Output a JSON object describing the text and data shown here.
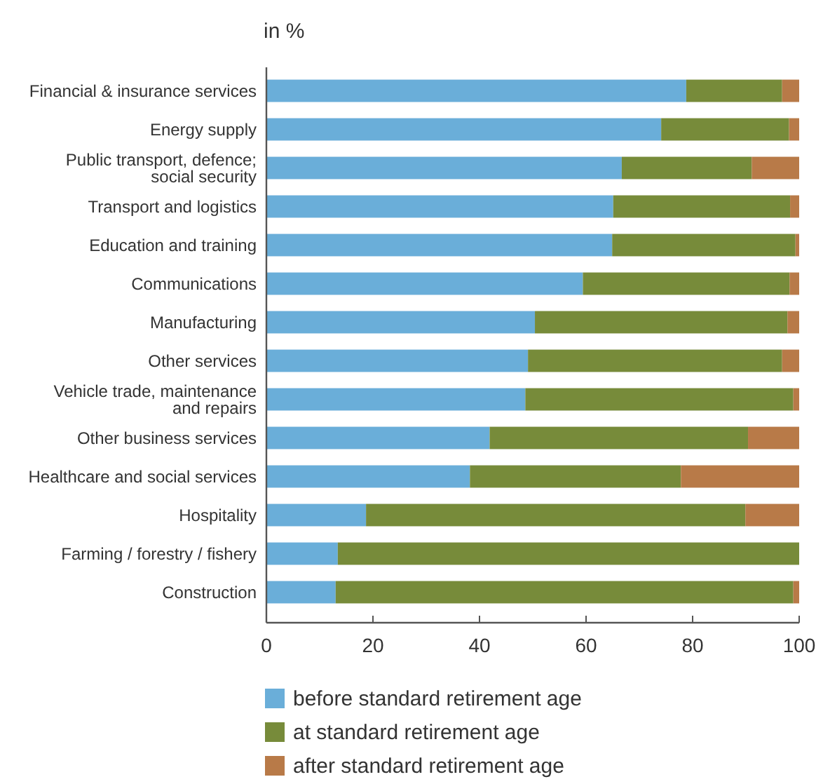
{
  "chart_data": {
    "type": "bar",
    "orientation": "horizontal",
    "stacked": true,
    "title": "in %",
    "categories": [
      "Financial & insurance services",
      "Energy supply",
      "Public transport, defence; social security",
      "Transport and logistics",
      "Education and training",
      "Communications",
      "Manufacturing",
      "Other services",
      "Vehicle trade, maintenance and repairs",
      "Other business services",
      "Healthcare and social services",
      "Hospitality",
      "Farming / forestry / fishery",
      "Construction"
    ],
    "series": [
      {
        "name": "before standard retirement age",
        "color": "#6aaed9",
        "values": [
          78.8,
          74.1,
          66.7,
          65.1,
          64.9,
          59.4,
          50.4,
          49.1,
          48.6,
          41.9,
          38.2,
          18.7,
          13.4,
          13.0
        ]
      },
      {
        "name": "at standard retirement age",
        "color": "#778b3a",
        "values": [
          18.0,
          24.0,
          24.4,
          33.2,
          34.4,
          38.8,
          47.4,
          47.7,
          50.3,
          48.5,
          39.6,
          71.2,
          86.6,
          85.9
        ]
      },
      {
        "name": "after standard retirement age",
        "color": "#b87a48",
        "values": [
          3.2,
          1.9,
          8.9,
          1.7,
          0.7,
          1.8,
          2.2,
          3.2,
          1.1,
          9.6,
          22.2,
          10.1,
          0,
          1.1
        ]
      }
    ],
    "xlim": [
      0,
      100
    ],
    "xticks": [
      0,
      20,
      40,
      60,
      80,
      100
    ],
    "grid": false,
    "legend": "bottom"
  }
}
